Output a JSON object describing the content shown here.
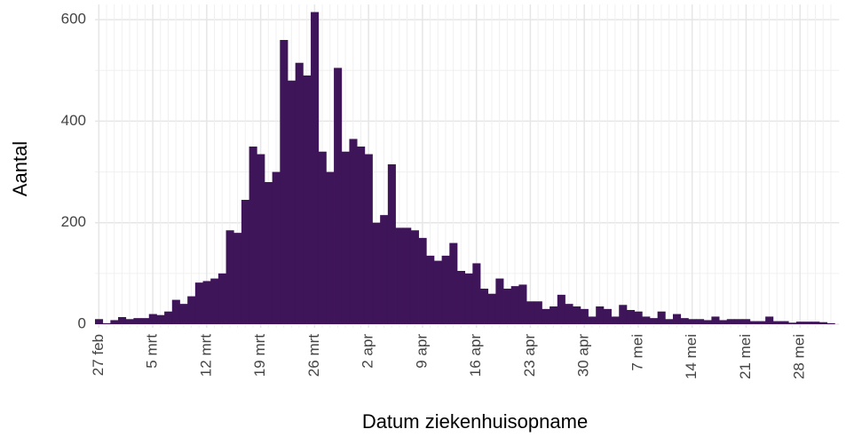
{
  "chart_data": {
    "type": "bar",
    "x_label": "Datum ziekenhuisopname",
    "y_label": "Aantal",
    "color": "#3f1559",
    "grid": true,
    "categories": [
      "27 feb",
      null,
      null,
      null,
      null,
      null,
      null,
      "5 mrt",
      null,
      null,
      null,
      null,
      null,
      null,
      "12 mrt",
      null,
      null,
      null,
      null,
      null,
      null,
      "19 mrt",
      null,
      null,
      null,
      null,
      null,
      null,
      "26 mrt",
      null,
      null,
      null,
      null,
      null,
      null,
      "2 apr",
      null,
      null,
      null,
      null,
      null,
      null,
      "9 apr",
      null,
      null,
      null,
      null,
      null,
      null,
      "16 apr",
      null,
      null,
      null,
      null,
      null,
      null,
      "23 apr",
      null,
      null,
      null,
      null,
      null,
      null,
      "30 apr",
      null,
      null,
      null,
      null,
      null,
      null,
      "7 mei",
      null,
      null,
      null,
      null,
      null,
      null,
      "14 mei",
      null,
      null,
      null,
      null,
      null,
      null,
      "21 mei",
      null,
      null,
      null,
      null,
      null,
      null,
      "28 mei",
      null,
      null,
      null,
      null
    ],
    "values": [
      10,
      2,
      8,
      14,
      10,
      12,
      12,
      20,
      18,
      25,
      48,
      40,
      55,
      82,
      85,
      90,
      100,
      185,
      180,
      245,
      350,
      335,
      280,
      300,
      560,
      480,
      515,
      490,
      615,
      340,
      300,
      505,
      340,
      365,
      350,
      335,
      200,
      215,
      315,
      190,
      190,
      185,
      170,
      135,
      125,
      135,
      160,
      105,
      100,
      120,
      70,
      60,
      90,
      70,
      75,
      78,
      45,
      45,
      30,
      35,
      58,
      40,
      35,
      30,
      15,
      35,
      30,
      15,
      38,
      28,
      25,
      15,
      12,
      25,
      10,
      20,
      12,
      10,
      10,
      8,
      15,
      8,
      10,
      10,
      10,
      6,
      6,
      15,
      6,
      6,
      3,
      5,
      5,
      5,
      4,
      2
    ],
    "ylim": [
      0,
      630
    ],
    "yticks": [
      0,
      200,
      400,
      600
    ]
  }
}
